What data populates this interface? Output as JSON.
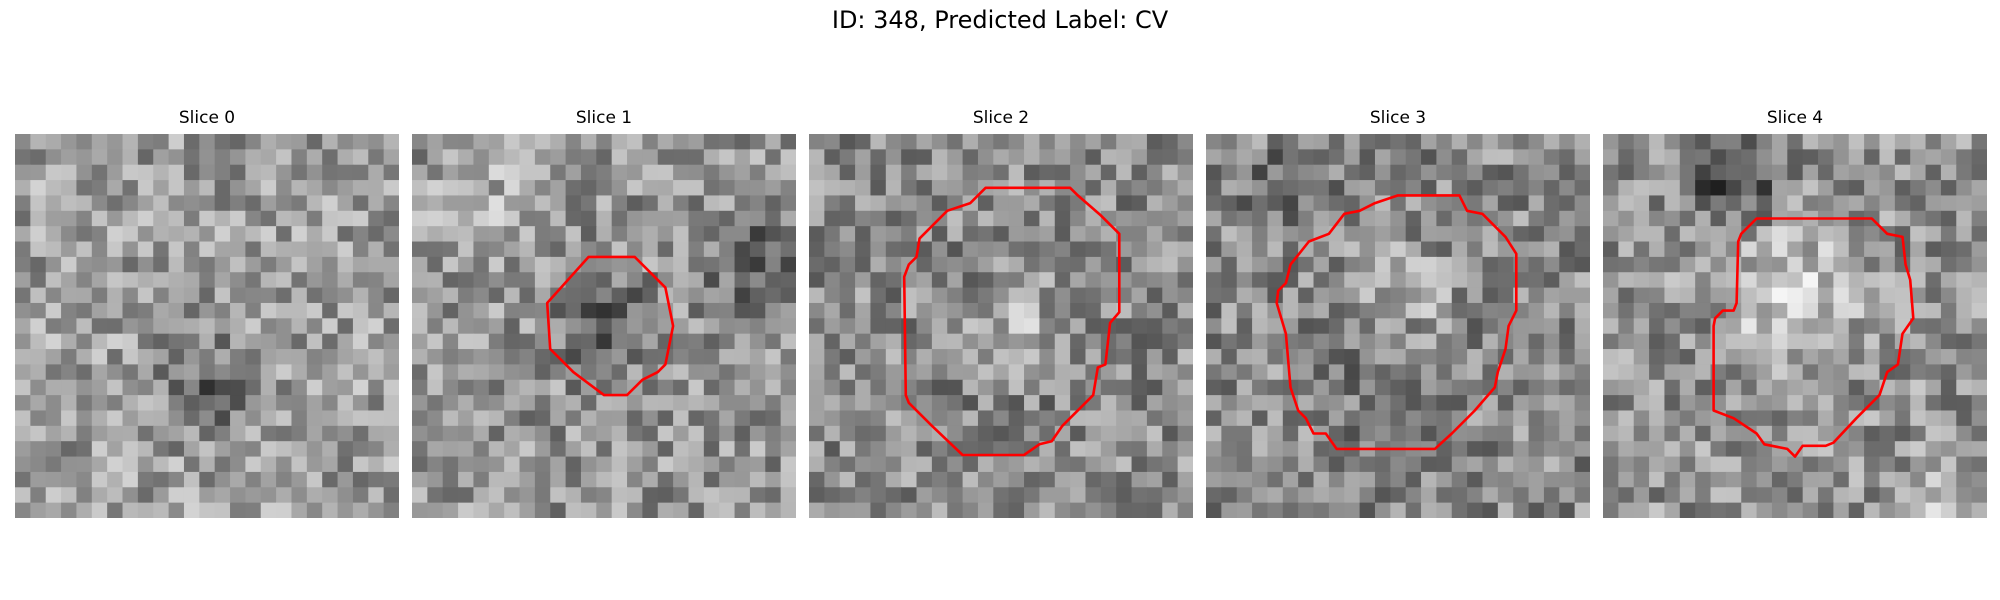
{
  "figure": {
    "title": "ID: 348, Predicted Label: CV",
    "contour_color": "#ff0000"
  },
  "slices": [
    {
      "label": "Slice 0",
      "has_contour": false,
      "brightness": 0.62
    },
    {
      "label": "Slice 1",
      "has_contour": true,
      "brightness": 0.55
    },
    {
      "label": "Slice 2",
      "has_contour": true,
      "brightness": 0.5
    },
    {
      "label": "Slice 3",
      "has_contour": true,
      "brightness": 0.48
    },
    {
      "label": "Slice 4",
      "has_contour": true,
      "brightness": 0.55
    }
  ]
}
